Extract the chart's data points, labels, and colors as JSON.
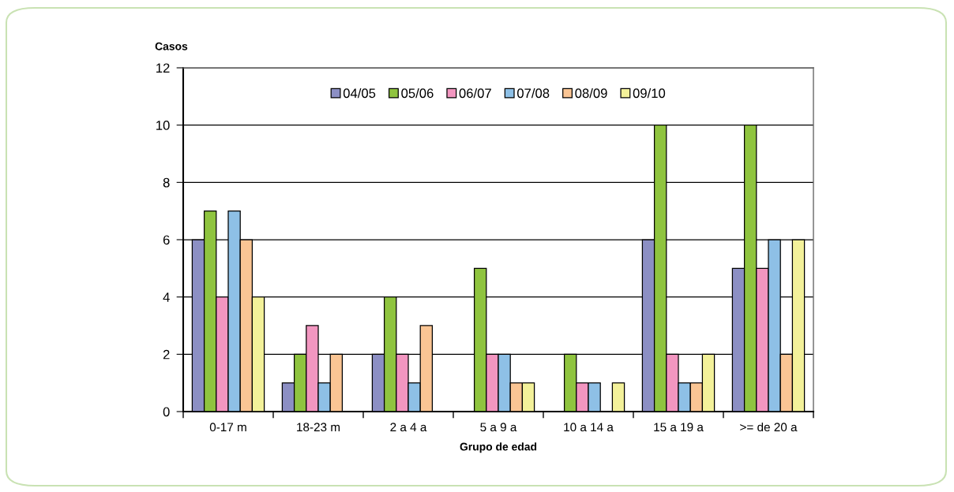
{
  "chart_data": {
    "type": "bar",
    "xlabel": "Grupo de edad",
    "ylabel": "Casos",
    "categories": [
      "0-17 m",
      "18-23 m",
      "2 a 4 a",
      "5 a 9 a",
      "10 a 14 a",
      "15 a 19 a",
      ">= de 20 a"
    ],
    "series": [
      {
        "name": "04/05",
        "color": "#8c8fc4",
        "values": [
          6,
          1,
          2,
          0,
          0,
          6,
          5
        ]
      },
      {
        "name": "05/06",
        "color": "#8fc43f",
        "values": [
          7,
          2,
          4,
          5,
          2,
          10,
          10
        ]
      },
      {
        "name": "06/07",
        "color": "#f296c0",
        "values": [
          4,
          3,
          2,
          2,
          1,
          2,
          5
        ]
      },
      {
        "name": "07/08",
        "color": "#8ec0e6",
        "values": [
          7,
          1,
          1,
          2,
          1,
          1,
          6
        ]
      },
      {
        "name": "08/09",
        "color": "#fac594",
        "values": [
          6,
          2,
          3,
          1,
          0,
          1,
          2
        ]
      },
      {
        "name": "09/10",
        "color": "#f3f19a",
        "values": [
          4,
          0,
          0,
          1,
          1,
          2,
          6
        ]
      }
    ],
    "ylim": [
      0,
      12
    ],
    "yticks": [
      0,
      2,
      4,
      6,
      8,
      10,
      12
    ],
    "grid": "y",
    "legend": "top"
  }
}
